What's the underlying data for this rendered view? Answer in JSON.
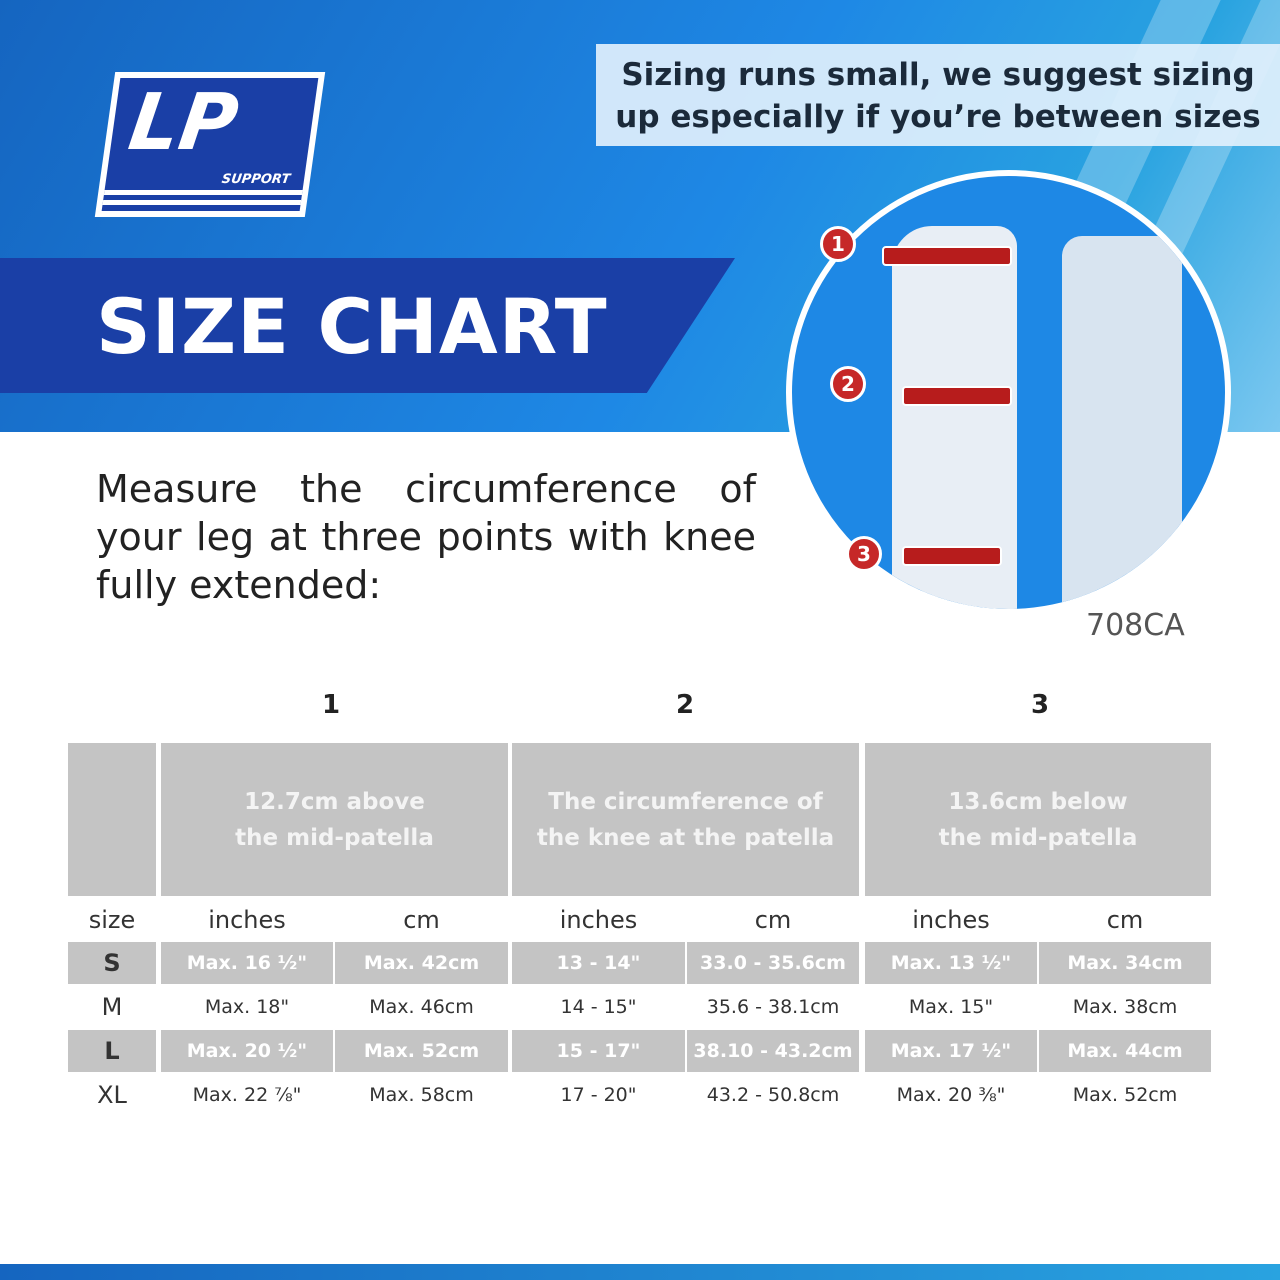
{
  "brand": {
    "logo_text": "LP",
    "logo_sub": "SUPPORT"
  },
  "title": "SIZE CHART",
  "note": "Sizing runs small, we suggest sizing up especially if you’re between sizes",
  "illustration": {
    "markers": [
      "1",
      "2",
      "3"
    ],
    "model": "708CA"
  },
  "intro": "Measure the circumference of your leg at three points with knee fully extended:",
  "table": {
    "points": [
      "1",
      "2",
      "3"
    ],
    "point_descriptions": [
      "12.7cm above\nthe mid-patella",
      "The circumference of\nthe knee at the patella",
      "13.6cm below\nthe mid-patella"
    ],
    "columns": [
      "size",
      "inches",
      "cm",
      "inches",
      "cm",
      "inches",
      "cm"
    ],
    "rows": [
      [
        "S",
        "Max. 16 ½\"",
        "Max. 42cm",
        "13 - 14\"",
        "33.0 - 35.6cm",
        "Max. 13 ½\"",
        "Max. 34cm"
      ],
      [
        "M",
        "Max. 18\"",
        "Max. 46cm",
        "14 - 15\"",
        "35.6 - 38.1cm",
        "Max. 15\"",
        "Max. 38cm"
      ],
      [
        "L",
        "Max. 20 ½\"",
        "Max. 52cm",
        "15 - 17\"",
        "38.10 - 43.2cm",
        "Max. 17 ½\"",
        "Max. 44cm"
      ],
      [
        "XL",
        "Max. 22 ⅞\"",
        "Max. 58cm",
        "17 - 20\"",
        "43.2 - 50.8cm",
        "Max. 20 ⅜\"",
        "Max. 52cm"
      ]
    ]
  },
  "colors": {
    "brand_blue": "#1a3fa6",
    "accent_red": "#c62828",
    "table_gray": "#c4c4c4"
  }
}
